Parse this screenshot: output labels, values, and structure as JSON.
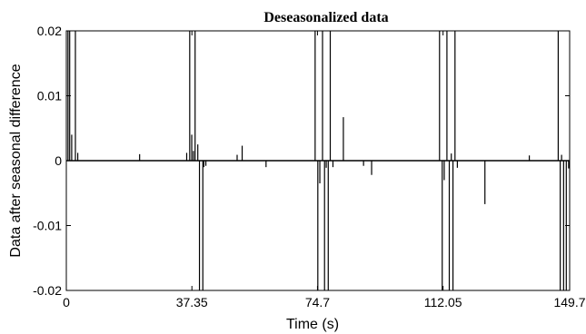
{
  "chart_data": {
    "type": "line",
    "title": "Deseasonalized data",
    "xlabel": "Time (s)",
    "ylabel": "Data after seasonal difference",
    "xlim": [
      0,
      149.7
    ],
    "ylim": [
      -0.02,
      0.02
    ],
    "x_ticks": [
      0,
      37.35,
      74.7,
      112.05,
      149.7
    ],
    "x_tick_labels": [
      "0",
      "37.35",
      "74.7",
      "112.05",
      "149.7"
    ],
    "y_ticks": [
      0.02,
      0.01,
      0,
      -0.01,
      -0.02
    ],
    "y_tick_labels": [
      "0.02",
      "0.01",
      "0",
      "-0.01",
      "-0.02"
    ],
    "grid": false,
    "series": [
      {
        "color": "#000000",
        "baseline": 0,
        "spikes": [
          {
            "x": 0.5,
            "y": 0.02
          },
          {
            "x": 1.0,
            "y": 0.02
          },
          {
            "x": 1.6,
            "y": 0.004
          },
          {
            "x": 2.7,
            "y": 0.02
          },
          {
            "x": 3.4,
            "y": 0.0012
          },
          {
            "x": 21.8,
            "y": 0.001
          },
          {
            "x": 35.8,
            "y": 0.0012
          },
          {
            "x": 36.7,
            "y": 0.02
          },
          {
            "x": 37.3,
            "y": 0.004
          },
          {
            "x": 37.8,
            "y": 0.0015
          },
          {
            "x": 38.3,
            "y": 0.02
          },
          {
            "x": 39.1,
            "y": 0.0025
          },
          {
            "x": 39.6,
            "y": -0.02
          },
          {
            "x": 40.6,
            "y": -0.02
          },
          {
            "x": 40.9,
            "y": -0.001
          },
          {
            "x": 41.5,
            "y": -0.0008
          },
          {
            "x": 50.8,
            "y": 0.0009
          },
          {
            "x": 52.3,
            "y": 0.0023
          },
          {
            "x": 59.4,
            "y": -0.001
          },
          {
            "x": 74.0,
            "y": 0.02
          },
          {
            "x": 74.8,
            "y": -0.02
          },
          {
            "x": 75.4,
            "y": -0.0035
          },
          {
            "x": 76.2,
            "y": 0.02
          },
          {
            "x": 76.8,
            "y": -0.02
          },
          {
            "x": 77.3,
            "y": -0.0011
          },
          {
            "x": 77.9,
            "y": -0.02
          },
          {
            "x": 78.5,
            "y": 0.02
          },
          {
            "x": 79.3,
            "y": -0.001
          },
          {
            "x": 82.4,
            "y": 0.0067
          },
          {
            "x": 88.4,
            "y": -0.0008
          },
          {
            "x": 90.8,
            "y": -0.0022
          },
          {
            "x": 111.0,
            "y": 0.02
          },
          {
            "x": 111.8,
            "y": -0.02
          },
          {
            "x": 112.4,
            "y": -0.003
          },
          {
            "x": 113.2,
            "y": 0.02
          },
          {
            "x": 113.9,
            "y": -0.02
          },
          {
            "x": 114.5,
            "y": 0.0011
          },
          {
            "x": 115.0,
            "y": -0.02
          },
          {
            "x": 115.6,
            "y": 0.02
          },
          {
            "x": 116.3,
            "y": -0.0011
          },
          {
            "x": 124.5,
            "y": -0.0067
          },
          {
            "x": 137.7,
            "y": 0.0008
          },
          {
            "x": 146.3,
            "y": 0.02
          },
          {
            "x": 146.9,
            "y": -0.02
          },
          {
            "x": 147.3,
            "y": 0.0009
          },
          {
            "x": 147.9,
            "y": -0.02
          },
          {
            "x": 148.7,
            "y": -0.02
          },
          {
            "x": 149.4,
            "y": -0.0012
          }
        ]
      }
    ]
  }
}
